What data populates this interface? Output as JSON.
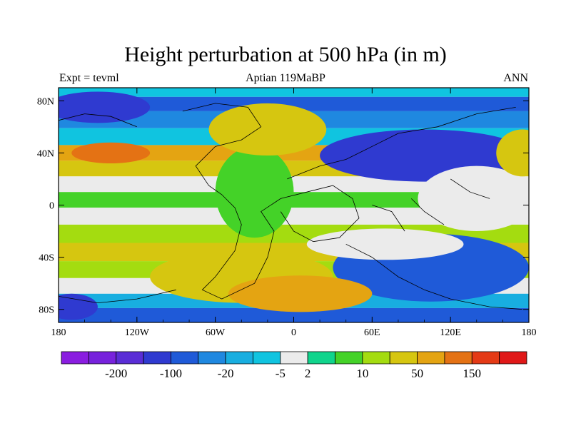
{
  "header": {
    "title": "Height perturbation at 500 hPa (in m)",
    "left": "Expt = tevml",
    "center": "Aptian   119MaBP",
    "right": "ANN"
  },
  "chart_data": {
    "type": "heatmap",
    "title": "Height perturbation at 500 hPa (in m)",
    "xlabel": "",
    "ylabel": "",
    "xlim": [
      -180,
      180
    ],
    "ylim": [
      -90,
      90
    ],
    "x_ticks": [
      {
        "value": -180,
        "label": "180"
      },
      {
        "value": -120,
        "label": "120W"
      },
      {
        "value": -60,
        "label": "60W"
      },
      {
        "value": 0,
        "label": "0"
      },
      {
        "value": 60,
        "label": "60E"
      },
      {
        "value": 120,
        "label": "120E"
      },
      {
        "value": 180,
        "label": "180"
      }
    ],
    "y_ticks": [
      {
        "value": 80,
        "label": "80N"
      },
      {
        "value": 40,
        "label": "40N"
      },
      {
        "value": 0,
        "label": "0"
      },
      {
        "value": -40,
        "label": "40S"
      },
      {
        "value": -80,
        "label": "80S"
      }
    ],
    "colorbar": {
      "colors": [
        "#8a1de0",
        "#7722dc",
        "#5a2dd6",
        "#2f3ad0",
        "#1f5ad8",
        "#1f88e0",
        "#18aee0",
        "#10c4e0",
        "#ebebeb",
        "#10d48c",
        "#44d228",
        "#a4dc10",
        "#d6c610",
        "#e4a412",
        "#e47214",
        "#e43a16",
        "#e01818"
      ],
      "labels": [
        {
          "after_box": 2,
          "text": "-200"
        },
        {
          "after_box": 4,
          "text": "-100"
        },
        {
          "after_box": 6,
          "text": "-20"
        },
        {
          "after_box": 8,
          "text": "-5"
        },
        {
          "after_box": 9,
          "text": "2"
        },
        {
          "after_box": 11,
          "text": "10"
        },
        {
          "after_box": 13,
          "text": "50"
        },
        {
          "after_box": 15,
          "text": "150"
        }
      ]
    },
    "bands": [
      {
        "lat": 88,
        "level": 7
      },
      {
        "lat": 78,
        "level": 4
      },
      {
        "lat": 66,
        "level": 5
      },
      {
        "lat": 52,
        "level": 7
      },
      {
        "lat": 40,
        "level": 13
      },
      {
        "lat": 28,
        "level": 12
      },
      {
        "lat": 16,
        "level": 8
      },
      {
        "lat": 4,
        "level": 10
      },
      {
        "lat": -8,
        "level": 8
      },
      {
        "lat": -22,
        "level": 11
      },
      {
        "lat": -36,
        "level": 12
      },
      {
        "lat": -50,
        "level": 11
      },
      {
        "lat": -62,
        "level": 8
      },
      {
        "lat": -74,
        "level": 6
      },
      {
        "lat": -84,
        "level": 4
      }
    ],
    "features": [
      {
        "type": "blob",
        "lon": 100,
        "lat": 38,
        "rlon": 80,
        "rlat": 20,
        "level": 3
      },
      {
        "type": "blob",
        "lon": 105,
        "lat": -48,
        "rlon": 75,
        "rlat": 26,
        "level": 4
      },
      {
        "type": "blob",
        "lon": -40,
        "lat": -55,
        "rlon": 70,
        "rlat": 20,
        "level": 12
      },
      {
        "type": "blob",
        "lon": 5,
        "lat": -68,
        "rlon": 55,
        "rlat": 14,
        "level": 13
      },
      {
        "type": "blob",
        "lon": -150,
        "lat": 75,
        "rlon": 40,
        "rlat": 12,
        "level": 3
      },
      {
        "type": "blob",
        "lon": -140,
        "lat": 40,
        "rlon": 30,
        "rlat": 8,
        "level": 14
      },
      {
        "type": "blob",
        "lon": 140,
        "lat": 5,
        "rlon": 45,
        "rlat": 25,
        "level": 8
      },
      {
        "type": "blob",
        "lon": -30,
        "lat": 10,
        "rlon": 30,
        "rlat": 35,
        "level": 10
      },
      {
        "type": "blob",
        "lon": 70,
        "lat": -30,
        "rlon": 60,
        "rlat": 12,
        "level": 8
      },
      {
        "type": "blob",
        "lon": -20,
        "lat": 58,
        "rlon": 45,
        "rlat": 20,
        "level": 12
      },
      {
        "type": "blob",
        "lon": 175,
        "lat": 40,
        "rlon": 20,
        "rlat": 18,
        "level": 12
      },
      {
        "type": "blob",
        "lon": -170,
        "lat": -78,
        "rlon": 20,
        "rlat": 10,
        "level": 3
      }
    ],
    "coastlines": [
      [
        [
          -85,
          72
        ],
        [
          -60,
          78
        ],
        [
          -35,
          75
        ],
        [
          -25,
          60
        ],
        [
          -40,
          50
        ],
        [
          -60,
          45
        ],
        [
          -75,
          30
        ],
        [
          -65,
          15
        ],
        [
          -55,
          8
        ],
        [
          -45,
          -2
        ],
        [
          -40,
          -15
        ],
        [
          -45,
          -35
        ],
        [
          -60,
          -55
        ],
        [
          -70,
          -65
        ],
        [
          -55,
          -72
        ],
        [
          -30,
          -60
        ],
        [
          -20,
          -40
        ],
        [
          -15,
          -20
        ],
        [
          -25,
          -5
        ],
        [
          -10,
          5
        ],
        [
          10,
          10
        ],
        [
          30,
          15
        ],
        [
          45,
          5
        ],
        [
          50,
          -10
        ],
        [
          35,
          -25
        ],
        [
          15,
          -28
        ],
        [
          0,
          -20
        ],
        [
          -10,
          -5
        ]
      ],
      [
        [
          -5,
          20
        ],
        [
          20,
          30
        ],
        [
          40,
          35
        ],
        [
          60,
          45
        ],
        [
          80,
          55
        ],
        [
          110,
          60
        ],
        [
          140,
          70
        ],
        [
          170,
          75
        ]
      ],
      [
        [
          40,
          -30
        ],
        [
          60,
          -40
        ],
        [
          80,
          -55
        ],
        [
          100,
          -65
        ],
        [
          120,
          -72
        ],
        [
          150,
          -78
        ],
        [
          175,
          -80
        ]
      ],
      [
        [
          60,
          0
        ],
        [
          75,
          -5
        ],
        [
          85,
          -20
        ]
      ],
      [
        [
          90,
          5
        ],
        [
          100,
          -5
        ],
        [
          115,
          -15
        ]
      ],
      [
        [
          120,
          20
        ],
        [
          135,
          10
        ],
        [
          150,
          5
        ]
      ],
      [
        [
          -180,
          65
        ],
        [
          -160,
          70
        ],
        [
          -140,
          68
        ],
        [
          -120,
          60
        ]
      ],
      [
        [
          -180,
          -70
        ],
        [
          -150,
          -75
        ],
        [
          -120,
          -72
        ],
        [
          -90,
          -65
        ]
      ]
    ]
  }
}
